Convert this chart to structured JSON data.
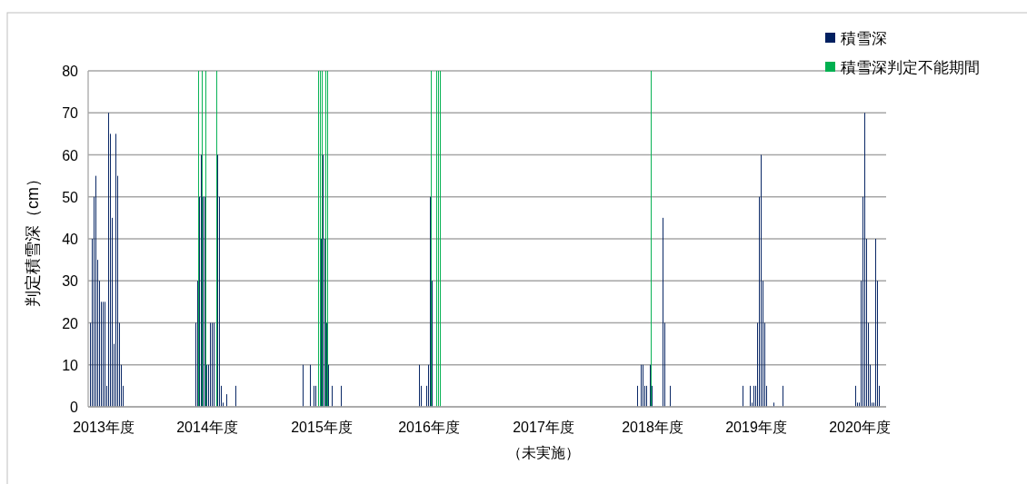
{
  "chart_data": {
    "type": "bar",
    "ylabel": "判定積雪深（cm）",
    "categories": [
      null,
      null,
      null,
      null,
      null,
      null,
      null,
      null,
      "2013年度",
      null,
      null,
      null,
      null,
      null,
      null,
      null,
      null,
      null,
      null,
      null,
      null,
      null,
      null,
      null,
      null,
      null,
      null,
      null,
      null,
      null,
      null,
      null,
      null,
      null,
      null,
      null,
      null,
      null,
      null,
      null,
      null,
      null,
      null,
      null,
      null,
      null,
      null,
      null,
      null,
      null,
      null,
      null,
      null,
      null,
      null,
      null,
      null,
      null,
      null,
      null,
      null,
      null,
      null,
      null,
      null,
      "2014年度",
      null,
      null,
      null,
      null,
      null,
      null,
      null,
      null,
      null,
      null,
      null,
      null,
      null,
      null,
      null,
      null,
      null,
      null,
      null,
      null,
      null,
      null,
      null,
      null,
      null,
      null,
      null,
      null,
      null,
      null,
      null,
      null,
      null,
      null,
      null,
      null,
      null,
      null,
      null,
      null,
      null,
      null,
      null,
      null,
      null,
      null,
      null,
      null,
      null,
      null,
      null,
      null,
      null,
      null,
      null,
      null,
      null,
      null,
      null,
      null,
      null,
      null,
      "2015年度",
      null,
      null,
      null,
      null,
      null,
      null,
      null,
      null,
      null,
      null,
      null,
      null,
      null,
      null,
      null,
      null,
      null,
      null,
      null,
      null,
      null,
      null,
      null,
      null,
      null,
      null,
      null,
      null,
      null,
      null,
      null,
      null,
      null,
      null,
      null,
      null,
      null,
      null,
      null,
      null,
      null,
      null,
      null,
      null,
      null,
      null,
      null,
      null,
      null,
      null,
      null,
      null,
      null,
      null,
      null,
      null,
      null,
      null,
      "2016年度",
      null,
      null,
      null,
      null,
      null,
      null,
      null,
      null,
      null,
      null,
      null,
      null,
      null,
      null,
      null,
      null,
      null,
      null,
      null,
      null,
      null,
      null,
      null,
      null,
      null,
      null,
      null,
      null,
      null,
      null,
      null,
      null,
      null,
      null,
      null,
      null,
      null,
      null,
      null,
      null,
      null,
      null,
      null,
      null,
      null,
      null,
      null,
      null,
      null,
      null,
      null,
      null,
      null,
      null,
      null,
      null,
      null,
      null,
      null,
      null,
      null,
      null,
      "2017年度（未実施）",
      null,
      null,
      null,
      null,
      null,
      null,
      null,
      null,
      null,
      null,
      null,
      null,
      null,
      null,
      null,
      null,
      null,
      null,
      null,
      null,
      null,
      null,
      null,
      null,
      null,
      null,
      null,
      null,
      null,
      null,
      null,
      null,
      null,
      null,
      null,
      null,
      null,
      null,
      null,
      null,
      null,
      null,
      null,
      null,
      null,
      null,
      null,
      null,
      null,
      null,
      null,
      null,
      null,
      null,
      null,
      null,
      null,
      null,
      null,
      "2018年度",
      null,
      null,
      null,
      null,
      null,
      null,
      null,
      null,
      null,
      null,
      null,
      null,
      null,
      null,
      null,
      null,
      null,
      null,
      null,
      null,
      null,
      null,
      null,
      null,
      null,
      null,
      null,
      null,
      null,
      null,
      null,
      null,
      null,
      null,
      null,
      null,
      null,
      null,
      null,
      null,
      null,
      null,
      null,
      null,
      null,
      null,
      null,
      null,
      null,
      null,
      null,
      null,
      null,
      null,
      null,
      null,
      "2019年度",
      null,
      null,
      null,
      null,
      null,
      null,
      null,
      null,
      null,
      null,
      null,
      null,
      null,
      null,
      null,
      null,
      null,
      null,
      null,
      null,
      null,
      null,
      null,
      null,
      null,
      null,
      null,
      null,
      null,
      null,
      null,
      null,
      null,
      null,
      null,
      null,
      null,
      null,
      null,
      null,
      null,
      null,
      null,
      null,
      null,
      null,
      null,
      null,
      null,
      null,
      null,
      null,
      null,
      null,
      null,
      null,
      "2020年度",
      null,
      null,
      null,
      null,
      null,
      null,
      null,
      null,
      null,
      null,
      null,
      null,
      null,
      null
    ],
    "ylim": [
      0,
      80
    ],
    "yticks": [
      0,
      10,
      20,
      30,
      40,
      50,
      60,
      70,
      80
    ],
    "grid": "y",
    "legend": "top right",
    "series": [
      {
        "name": "積雪深",
        "color": "#002060",
        "values": [
          null,
          20,
          40,
          50,
          55,
          35,
          30,
          25,
          25,
          25,
          5,
          70,
          65,
          45,
          15,
          65,
          55,
          20,
          10,
          5,
          null,
          null,
          null,
          null,
          null,
          null,
          null,
          null,
          null,
          null,
          null,
          null,
          null,
          null,
          null,
          null,
          null,
          null,
          null,
          null,
          null,
          null,
          null,
          null,
          null,
          null,
          null,
          null,
          null,
          null,
          null,
          null,
          null,
          null,
          null,
          null,
          null,
          null,
          null,
          20,
          30,
          50,
          60,
          50,
          50,
          10,
          10,
          20,
          20,
          20,
          null,
          60,
          50,
          5,
          1,
          null,
          3,
          null,
          null,
          null,
          null,
          5,
          null,
          null,
          null,
          null,
          null,
          null,
          null,
          null,
          null,
          null,
          null,
          null,
          null,
          null,
          null,
          null,
          null,
          null,
          null,
          null,
          null,
          null,
          null,
          null,
          null,
          null,
          null,
          null,
          null,
          null,
          null,
          null,
          null,
          null,
          null,
          null,
          10,
          null,
          null,
          null,
          10,
          null,
          5,
          5,
          null,
          null,
          40,
          60,
          40,
          20,
          10,
          null,
          5,
          null,
          null,
          null,
          null,
          5,
          null,
          null,
          null,
          null,
          null,
          null,
          null,
          null,
          null,
          null,
          null,
          null,
          null,
          null,
          null,
          null,
          null,
          null,
          null,
          null,
          null,
          null,
          null,
          null,
          null,
          null,
          null,
          null,
          null,
          null,
          null,
          null,
          null,
          null,
          null,
          null,
          null,
          null,
          null,
          null,
          null,
          null,
          10,
          5,
          null,
          null,
          5,
          10,
          50,
          30,
          null,
          null,
          null,
          null,
          null,
          null,
          null,
          null,
          null,
          null,
          null,
          null,
          null,
          null,
          null,
          null,
          null,
          null,
          null,
          null,
          null,
          null,
          null,
          null,
          null,
          null,
          null,
          null,
          null,
          null,
          null,
          null,
          null,
          null,
          null,
          null,
          null,
          null,
          null,
          null,
          null,
          null,
          null,
          null,
          null,
          null,
          null,
          null,
          null,
          null,
          null,
          null,
          null,
          null,
          null,
          null,
          null,
          null,
          null,
          null,
          null,
          null,
          null,
          null,
          null,
          null,
          null,
          null,
          null,
          null,
          null,
          null,
          null,
          null,
          null,
          null,
          null,
          null,
          null,
          null,
          null,
          null,
          null,
          null,
          null,
          null,
          null,
          null,
          null,
          null,
          null,
          null,
          null,
          null,
          null,
          null,
          null,
          null,
          null,
          null,
          null,
          null,
          null,
          null,
          null,
          null,
          null,
          null,
          null,
          null,
          null,
          null,
          5,
          null,
          10,
          10,
          5,
          5,
          null,
          10,
          5,
          null,
          null,
          null,
          null,
          null,
          45,
          20,
          null,
          null,
          5,
          null,
          null,
          null,
          null,
          null,
          null,
          null,
          null,
          null,
          null,
          null,
          null,
          null,
          null,
          null,
          null,
          null,
          null,
          null,
          null,
          null,
          null,
          null,
          null,
          null,
          null,
          null,
          null,
          null,
          null,
          null,
          null,
          null,
          null,
          null,
          null,
          null,
          null,
          null,
          5,
          null,
          null,
          null,
          5,
          1,
          5,
          5,
          20,
          50,
          60,
          30,
          20,
          5,
          null,
          null,
          null,
          1,
          null,
          null,
          null,
          null,
          5,
          null,
          null,
          null,
          null,
          null,
          null,
          null,
          null,
          null,
          null,
          null,
          null,
          null,
          null,
          null,
          null,
          null,
          null,
          null,
          null,
          null,
          null,
          null,
          null,
          null,
          null,
          null,
          null,
          null,
          null,
          null,
          null,
          null,
          null,
          null,
          null,
          null,
          null,
          null,
          5,
          1,
          1,
          30,
          50,
          70,
          40,
          20,
          10,
          1,
          1,
          40,
          30,
          5,
          null,
          null,
          null
        ]
      },
      {
        "name": "積雪深判定不能期間",
        "color": "#00b050",
        "values": [
          null,
          null,
          null,
          null,
          null,
          null,
          null,
          null,
          null,
          null,
          null,
          null,
          null,
          null,
          null,
          null,
          null,
          null,
          null,
          null,
          null,
          null,
          null,
          null,
          null,
          null,
          null,
          null,
          null,
          null,
          null,
          null,
          null,
          null,
          null,
          null,
          null,
          null,
          null,
          null,
          null,
          null,
          null,
          null,
          null,
          null,
          null,
          null,
          null,
          null,
          null,
          null,
          null,
          null,
          null,
          null,
          null,
          null,
          null,
          null,
          80,
          null,
          80,
          null,
          80,
          null,
          null,
          null,
          null,
          null,
          80,
          null,
          null,
          null,
          null,
          null,
          null,
          null,
          null,
          null,
          null,
          null,
          null,
          null,
          null,
          null,
          null,
          null,
          null,
          null,
          null,
          null,
          null,
          null,
          null,
          null,
          null,
          null,
          null,
          null,
          null,
          null,
          null,
          null,
          null,
          null,
          null,
          null,
          null,
          null,
          null,
          null,
          null,
          null,
          null,
          null,
          null,
          null,
          null,
          null,
          null,
          null,
          null,
          null,
          null,
          null,
          80,
          80,
          80,
          null,
          80,
          80,
          null,
          null,
          null,
          null,
          null,
          null,
          null,
          null,
          null,
          null,
          null,
          null,
          null,
          null,
          null,
          null,
          null,
          null,
          null,
          null,
          null,
          null,
          null,
          null,
          null,
          null,
          null,
          null,
          null,
          null,
          null,
          null,
          null,
          null,
          null,
          null,
          null,
          null,
          null,
          null,
          null,
          null,
          null,
          null,
          null,
          null,
          null,
          null,
          null,
          null,
          null,
          null,
          null,
          null,
          null,
          null,
          80,
          null,
          null,
          80,
          80,
          80,
          null,
          null,
          null,
          null,
          null,
          null,
          null,
          null,
          null,
          null,
          null,
          null,
          null,
          null,
          null,
          null,
          null,
          null,
          null,
          null,
          null,
          null,
          null,
          null,
          null,
          null,
          null,
          null,
          null,
          null,
          null,
          null,
          null,
          null,
          null,
          null,
          null,
          null,
          null,
          null,
          null,
          null,
          null,
          null,
          null,
          null,
          null,
          null,
          null,
          null,
          null,
          null,
          null,
          null,
          null,
          null,
          null,
          null,
          null,
          null,
          null,
          null,
          null,
          null,
          null,
          null,
          null,
          null,
          null,
          null,
          null,
          null,
          null,
          null,
          null,
          null,
          null,
          null,
          null,
          null,
          null,
          null,
          null,
          null,
          null,
          null,
          null,
          null,
          null,
          null,
          null,
          null,
          null,
          null,
          null,
          null,
          null,
          null,
          null,
          null,
          null,
          null,
          null,
          null,
          null,
          null,
          null,
          null,
          null,
          null,
          null,
          null,
          null,
          null,
          null,
          80,
          null,
          null,
          null,
          null,
          null,
          null,
          null,
          null,
          null,
          null,
          null,
          null,
          null,
          null,
          null,
          null,
          null,
          null,
          null,
          null,
          null,
          null,
          null,
          null,
          null,
          null,
          null,
          null,
          null,
          null,
          null,
          null,
          null,
          null,
          null,
          null,
          null,
          null,
          null,
          null,
          null,
          null,
          null,
          null,
          null,
          null,
          null,
          null,
          null,
          null,
          null,
          null,
          null,
          null,
          null,
          null,
          null,
          null,
          null,
          null,
          null,
          null,
          null,
          null,
          null,
          null,
          null,
          null,
          null,
          null,
          null,
          null,
          null,
          null,
          null,
          null,
          null,
          null,
          null,
          null,
          null,
          null,
          null,
          null,
          null,
          null,
          null,
          null,
          null,
          null,
          null,
          null,
          null,
          null,
          null,
          null,
          null,
          null,
          null,
          null,
          null,
          null,
          null,
          null,
          null,
          null,
          null,
          null,
          null,
          null,
          null,
          null,
          null,
          null,
          null,
          null,
          null,
          null,
          null,
          null,
          null,
          null,
          null,
          null,
          null,
          null,
          null,
          null,
          null
        ]
      }
    ]
  }
}
